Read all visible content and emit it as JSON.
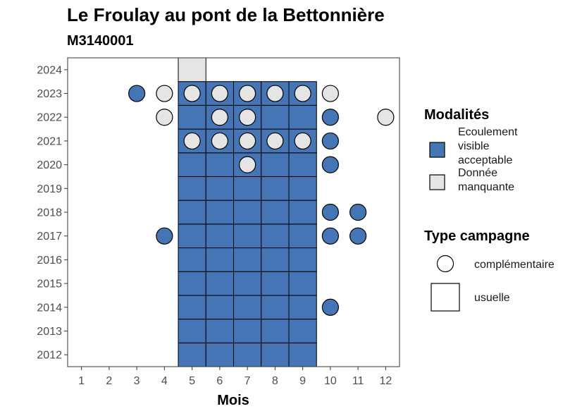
{
  "chart_data": {
    "type": "heatmap",
    "title": "Le Froulay au pont de la Bettonnière",
    "subtitle": "M3140001",
    "xlabel": "Mois",
    "ylabel": "",
    "x_ticks": [
      1,
      2,
      3,
      4,
      5,
      6,
      7,
      8,
      9,
      10,
      11,
      12
    ],
    "y_ticks": [
      2012,
      2013,
      2014,
      2015,
      2016,
      2017,
      2018,
      2019,
      2020,
      2021,
      2022,
      2023,
      2024
    ],
    "xlim": [
      0.5,
      12.5
    ],
    "ylim": [
      2011.5,
      2024.5
    ],
    "grid": false,
    "legend_position": "right",
    "colors": {
      "Ecoulement visible acceptable": "#4575b4",
      "Donnée manquante": "#e5e5e5"
    },
    "legends": [
      {
        "title": "Modalités",
        "entries": [
          {
            "label": "Ecoulement visible acceptable",
            "lines": [
              "Ecoulement",
              "visible",
              "acceptable"
            ],
            "color": "#4575b4"
          },
          {
            "label": "Donnée manquante",
            "lines": [
              "Donnée",
              "manquante"
            ],
            "color": "#e5e5e5"
          }
        ]
      },
      {
        "title": "Type campagne",
        "entries": [
          {
            "label": "complémentaire",
            "shape": "circle"
          },
          {
            "label": "usuelle",
            "shape": "square"
          }
        ]
      }
    ],
    "usuelle": [
      {
        "year": 2012,
        "months": [
          5,
          6,
          7,
          8,
          9
        ],
        "modalite": "Ecoulement visible acceptable"
      },
      {
        "year": 2013,
        "months": [
          5,
          6,
          7,
          8,
          9
        ],
        "modalite": "Ecoulement visible acceptable"
      },
      {
        "year": 2014,
        "months": [
          5,
          6,
          7,
          8,
          9
        ],
        "modalite": "Ecoulement visible acceptable"
      },
      {
        "year": 2015,
        "months": [
          5,
          6,
          7,
          8,
          9
        ],
        "modalite": "Ecoulement visible acceptable"
      },
      {
        "year": 2016,
        "months": [
          5,
          6,
          7,
          8,
          9
        ],
        "modalite": "Ecoulement visible acceptable"
      },
      {
        "year": 2017,
        "months": [
          5,
          6,
          7,
          8,
          9
        ],
        "modalite": "Ecoulement visible acceptable"
      },
      {
        "year": 2018,
        "months": [
          5,
          6,
          7,
          8,
          9
        ],
        "modalite": "Ecoulement visible acceptable"
      },
      {
        "year": 2019,
        "months": [
          5,
          6,
          7,
          8,
          9
        ],
        "modalite": "Ecoulement visible acceptable"
      },
      {
        "year": 2020,
        "months": [
          5,
          6,
          7,
          8,
          9
        ],
        "modalite": "Ecoulement visible acceptable"
      },
      {
        "year": 2021,
        "months": [
          5,
          6,
          7,
          8,
          9
        ],
        "modalite": "Ecoulement visible acceptable"
      },
      {
        "year": 2022,
        "months": [
          5,
          6,
          7,
          8,
          9
        ],
        "modalite": "Ecoulement visible acceptable"
      },
      {
        "year": 2023,
        "months": [
          5,
          6,
          7,
          8,
          9
        ],
        "modalite": "Ecoulement visible acceptable"
      },
      {
        "year": 2024,
        "months": [
          5
        ],
        "modalite": "Donnée manquante"
      }
    ],
    "complementaire": [
      {
        "year": 2023,
        "month": 3,
        "modalite": "Ecoulement visible acceptable"
      },
      {
        "year": 2023,
        "month": 4,
        "modalite": "Donnée manquante"
      },
      {
        "year": 2023,
        "month": 5,
        "modalite": "Donnée manquante"
      },
      {
        "year": 2023,
        "month": 6,
        "modalite": "Donnée manquante"
      },
      {
        "year": 2023,
        "month": 7,
        "modalite": "Donnée manquante"
      },
      {
        "year": 2023,
        "month": 8,
        "modalite": "Donnée manquante"
      },
      {
        "year": 2023,
        "month": 9,
        "modalite": "Donnée manquante"
      },
      {
        "year": 2023,
        "month": 10,
        "modalite": "Donnée manquante"
      },
      {
        "year": 2022,
        "month": 4,
        "modalite": "Donnée manquante"
      },
      {
        "year": 2022,
        "month": 6,
        "modalite": "Donnée manquante"
      },
      {
        "year": 2022,
        "month": 7,
        "modalite": "Donnée manquante"
      },
      {
        "year": 2022,
        "month": 10,
        "modalite": "Ecoulement visible acceptable"
      },
      {
        "year": 2022,
        "month": 12,
        "modalite": "Donnée manquante"
      },
      {
        "year": 2021,
        "month": 5,
        "modalite": "Donnée manquante"
      },
      {
        "year": 2021,
        "month": 6,
        "modalite": "Donnée manquante"
      },
      {
        "year": 2021,
        "month": 7,
        "modalite": "Donnée manquante"
      },
      {
        "year": 2021,
        "month": 8,
        "modalite": "Donnée manquante"
      },
      {
        "year": 2021,
        "month": 9,
        "modalite": "Donnée manquante"
      },
      {
        "year": 2021,
        "month": 10,
        "modalite": "Ecoulement visible acceptable"
      },
      {
        "year": 2020,
        "month": 7,
        "modalite": "Donnée manquante"
      },
      {
        "year": 2020,
        "month": 10,
        "modalite": "Ecoulement visible acceptable"
      },
      {
        "year": 2018,
        "month": 10,
        "modalite": "Ecoulement visible acceptable"
      },
      {
        "year": 2018,
        "month": 11,
        "modalite": "Ecoulement visible acceptable"
      },
      {
        "year": 2017,
        "month": 4,
        "modalite": "Ecoulement visible acceptable"
      },
      {
        "year": 2017,
        "month": 10,
        "modalite": "Ecoulement visible acceptable"
      },
      {
        "year": 2017,
        "month": 11,
        "modalite": "Ecoulement visible acceptable"
      },
      {
        "year": 2014,
        "month": 10,
        "modalite": "Ecoulement visible acceptable"
      }
    ]
  }
}
